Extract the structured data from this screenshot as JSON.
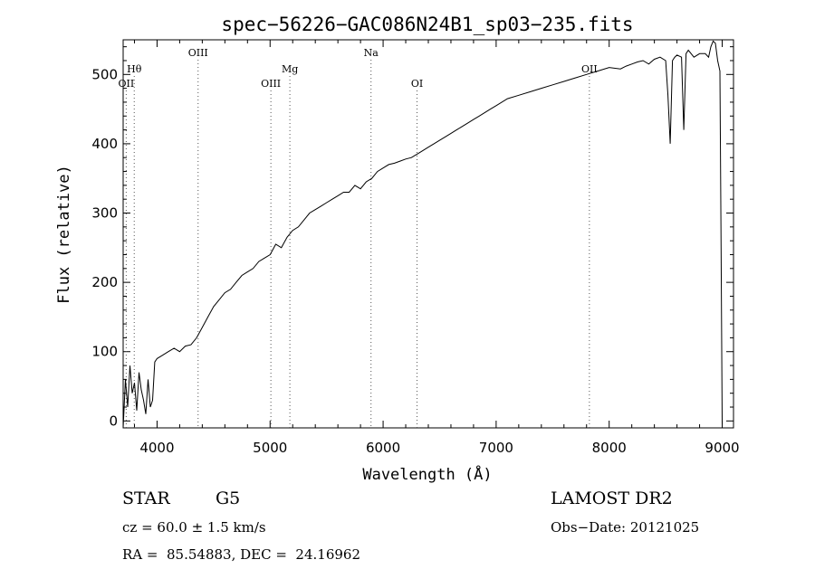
{
  "chart_data": {
    "type": "line",
    "title": "spec−56226−GAC086N24B1_sp03−235.fits",
    "xlabel": "Wavelength (Å)",
    "ylabel": "Flux (relative)",
    "xlim": [
      3700,
      9100
    ],
    "ylim": [
      -10,
      550
    ],
    "x_ticks": [
      4000,
      5000,
      6000,
      7000,
      8000,
      9000
    ],
    "y_ticks": [
      0,
      100,
      200,
      300,
      400,
      500
    ],
    "grid": false,
    "line_color": "#000000",
    "series": [
      {
        "x": [
          3700,
          3720,
          3740,
          3760,
          3780,
          3800,
          3820,
          3840,
          3860,
          3880,
          3900,
          3920,
          3940,
          3960,
          3980,
          4000,
          4050,
          4100,
          4150,
          4200,
          4250,
          4300,
          4350,
          4400,
          4450,
          4500,
          4550,
          4600,
          4650,
          4700,
          4750,
          4800,
          4850,
          4900,
          4950,
          5000,
          5050,
          5100,
          5150,
          5200,
          5250,
          5300,
          5350,
          5400,
          5450,
          5500,
          5550,
          5600,
          5650,
          5700,
          5750,
          5800,
          5850,
          5900,
          5950,
          6000,
          6050,
          6100,
          6150,
          6200,
          6250,
          6300,
          6350,
          6400,
          6450,
          6500,
          6550,
          6600,
          6650,
          6700,
          6750,
          6800,
          6850,
          6900,
          6950,
          7000,
          7100,
          7200,
          7300,
          7400,
          7500,
          7600,
          7700,
          7800,
          7900,
          8000,
          8100,
          8150,
          8200,
          8250,
          8300,
          8350,
          8400,
          8450,
          8500,
          8520,
          8540,
          8560,
          8580,
          8600,
          8640,
          8660,
          8680,
          8700,
          8750,
          8800,
          8850,
          8880,
          8900,
          8920,
          8940,
          8960,
          8980,
          8990,
          9000
        ],
        "y": [
          -10,
          60,
          20,
          80,
          40,
          55,
          15,
          70,
          45,
          30,
          10,
          60,
          20,
          30,
          85,
          90,
          95,
          100,
          105,
          100,
          108,
          110,
          120,
          135,
          150,
          165,
          175,
          185,
          190,
          200,
          210,
          215,
          220,
          230,
          235,
          240,
          255,
          250,
          265,
          275,
          280,
          290,
          300,
          305,
          310,
          315,
          320,
          325,
          330,
          330,
          340,
          335,
          345,
          350,
          360,
          365,
          370,
          372,
          375,
          378,
          380,
          385,
          390,
          395,
          400,
          405,
          410,
          415,
          420,
          425,
          430,
          435,
          440,
          445,
          450,
          455,
          465,
          470,
          475,
          480,
          485,
          490,
          495,
          500,
          505,
          510,
          508,
          512,
          515,
          518,
          520,
          515,
          522,
          525,
          520,
          470,
          400,
          520,
          525,
          528,
          525,
          420,
          530,
          535,
          525,
          530,
          530,
          525,
          540,
          548,
          545,
          520,
          505,
          250,
          -5
        ]
      }
    ],
    "lines": [
      {
        "label": "Hθ",
        "x": 3798,
        "row": "low"
      },
      {
        "label": "OII",
        "x": 3727,
        "row": "low2"
      },
      {
        "label": "OIII",
        "x": 4363,
        "row": "high"
      },
      {
        "label": "OIII",
        "x": 5007,
        "row": "low2"
      },
      {
        "label": "Mg",
        "x": 5175,
        "row": "low"
      },
      {
        "label": "Na",
        "x": 5893,
        "row": "high"
      },
      {
        "label": "OI",
        "x": 6300,
        "row": "low2"
      },
      {
        "label": "OII",
        "x": 7825,
        "row": "low"
      }
    ]
  },
  "info": {
    "class_label": "STAR",
    "subclass": "G5",
    "survey": "LAMOST DR2",
    "cz": "cz = 60.0 ± 1.5 km/s",
    "obs_date": "Obs−Date: 20121025",
    "radec": "RA =  85.54883, DEC =  24.16962"
  }
}
